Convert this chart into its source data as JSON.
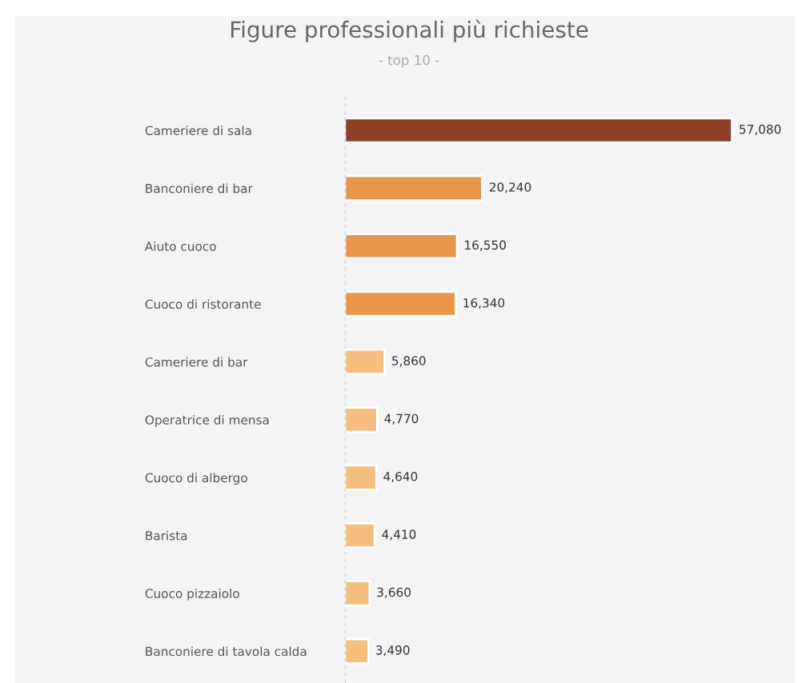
{
  "chart_data": {
    "type": "bar",
    "orientation": "horizontal",
    "title": "Figure professionali più richieste",
    "subtitle": "- top 10 -",
    "categories": [
      "Cameriere di sala",
      "Banconiere di bar",
      "Aiuto cuoco",
      "Cuoco di ristorante",
      "Cameriere di bar",
      "Operatrice di mensa",
      "Cuoco di albergo",
      "Barista",
      "Cuoco pizzaiolo",
      "Banconiere di tavola calda"
    ],
    "values": [
      57080,
      20240,
      16550,
      16340,
      5860,
      4770,
      4640,
      4410,
      3660,
      3490
    ],
    "colors": [
      "#8e3f28",
      "#e8974a",
      "#e8974a",
      "#e8974a",
      "#f5c07f",
      "#f5c07f",
      "#f5c07f",
      "#f5c07f",
      "#f5c07f",
      "#f5c07f"
    ],
    "value_labels": [
      "57,080",
      "20,240",
      "16,550",
      "16,340",
      "5,860",
      "4,770",
      "4,640",
      "4,410",
      "3,660",
      "3,490"
    ],
    "grid": false,
    "legend": false
  }
}
